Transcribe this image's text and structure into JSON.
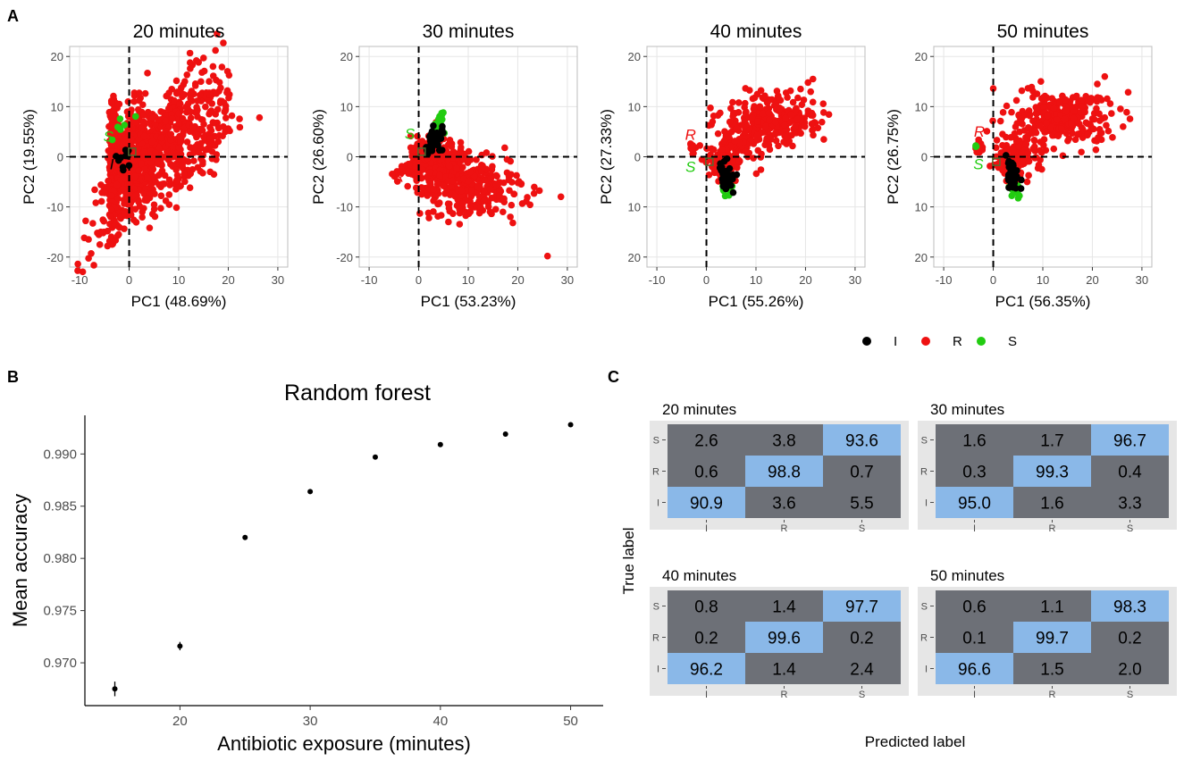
{
  "panel_letters": {
    "a": "A",
    "b": "B",
    "c": "C"
  },
  "colors": {
    "I": "#000000",
    "R": "#ee1111",
    "S": "#22cc11",
    "grid": "#e6e6e6",
    "border": "#bdbdbd",
    "cm_high": "#8ab8e8",
    "cm_low": "#6d7077",
    "cm_bg": "#e6e6e6"
  },
  "legend": {
    "items": [
      {
        "label": "I",
        "color": "#000000"
      },
      {
        "label": "R",
        "color": "#ee1111"
      },
      {
        "label": "S",
        "color": "#22cc11"
      }
    ]
  },
  "chart_data": [
    {
      "type": "scatter",
      "panel": "A",
      "title": "20 minutes",
      "xlabel": "PC1 (48.69%)",
      "ylabel": "PC2 (19.55%)",
      "xlim": [
        -12,
        32
      ],
      "ylim": [
        -22,
        22
      ],
      "xticks": [
        -10,
        0,
        10,
        20,
        30
      ],
      "yticks": [
        -20,
        -10,
        0,
        10,
        20
      ],
      "ref_lines": {
        "x": 0,
        "y": 0
      },
      "text_labels": [
        {
          "text": "S",
          "x": -4.2,
          "y": 3.0,
          "color": "#22cc11"
        },
        {
          "text": "I",
          "x": -3.5,
          "y": -2.5,
          "color": "#000000"
        }
      ],
      "series": [
        {
          "name": "R",
          "segments": [
            [
              -3,
              0,
              0.5,
              5.5,
              1.2,
              300
            ],
            [
              0,
              0,
              2,
              4.5,
              1.4,
              260
            ],
            [
              3,
              0.5,
              5,
              4,
              1.4,
              300
            ],
            [
              8,
              1,
              6,
              3.5,
              1.3,
              250
            ],
            [
              14,
              1.5,
              4,
              3,
              1.2,
              120
            ]
          ],
          "points": [
            [
              26.3,
              7.8
            ],
            [
              20,
              5.6
            ],
            [
              19,
              6
            ],
            [
              -2,
              10.5
            ],
            [
              1,
              11
            ],
            [
              2,
              11.2
            ]
          ]
        },
        {
          "name": "S",
          "segments": [
            [
              -2,
              7,
              1.8,
              1.5,
              0.4,
              6
            ]
          ],
          "points": []
        },
        {
          "name": "I",
          "segments": [
            [
              -1.2,
              0.3,
              0.7,
              1.2,
              0,
              10
            ]
          ],
          "points": []
        }
      ]
    },
    {
      "type": "scatter",
      "panel": "A",
      "title": "30 minutes",
      "xlabel": "PC1 (53.23%)",
      "ylabel": "PC2 (26.60%)",
      "xlim": [
        -12,
        32
      ],
      "ylim": [
        -22,
        22
      ],
      "xticks": [
        -10,
        0,
        10,
        20,
        30
      ],
      "yticks": [
        -20,
        -10,
        0,
        10,
        20
      ],
      "ref_lines": {
        "x": 0,
        "y": 0
      },
      "text_labels": [
        {
          "text": "S",
          "x": -1.8,
          "y": 3.6,
          "color": "#22cc11"
        },
        {
          "text": "R",
          "x": -4.0,
          "y": -5.0,
          "color": "#ee1111"
        }
      ],
      "series": [
        {
          "name": "R",
          "segments": [
            [
              -3,
              -2.8,
              1.5,
              0.5,
              0,
              20
            ],
            [
              0.5,
              1,
              1.5,
              1.5,
              0.3,
              80
            ],
            [
              4,
              -1.5,
              3,
              2.5,
              0,
              220
            ],
            [
              11,
              -6.5,
              5,
              2.5,
              0,
              260
            ]
          ],
          "points": [
            [
              26,
              -19.8
            ],
            [
              19,
              -13.2
            ],
            [
              18.5,
              -12
            ],
            [
              17,
              -11
            ]
          ]
        },
        {
          "name": "S",
          "segments": [
            [
              4,
              6.5,
              0.8,
              1,
              0.2,
              25
            ]
          ],
          "points": []
        },
        {
          "name": "I",
          "segments": [
            [
              3,
              3,
              1,
              1.5,
              0.5,
              40
            ]
          ],
          "points": []
        }
      ]
    },
    {
      "type": "scatter",
      "panel": "A",
      "title": "40 minutes",
      "xlabel": "PC1 (55.26%)",
      "ylabel": "PC2 (27.33%)",
      "xlim": [
        -12,
        32
      ],
      "ylim": [
        22,
        -22
      ],
      "xticks": [
        -10,
        0,
        10,
        20,
        30
      ],
      "yticks": [
        20,
        10,
        0,
        10,
        20
      ],
      "ref_lines": {
        "x": 0,
        "y": 0
      },
      "text_labels": [
        {
          "text": "S",
          "x": -3.2,
          "y": 3.0,
          "color": "#22cc11"
        },
        {
          "text": "R",
          "x": -3.2,
          "y": -3.4,
          "color": "#ee1111"
        }
      ],
      "series": [
        {
          "name": "R",
          "segments": [
            [
              -3,
              -1.8,
              0.4,
              0.5,
              0,
              15
            ],
            [
              3,
              2,
              1.5,
              1.5,
              0.3,
              60
            ],
            [
              6,
              -1.5,
              2.5,
              2,
              0,
              90
            ],
            [
              13,
              -7,
              5,
              2.5,
              0,
              280
            ]
          ],
          "points": [
            [
              21.5,
              -15.5
            ],
            [
              20.5,
              -14.8
            ],
            [
              19,
              -13.5
            ]
          ]
        },
        {
          "name": "S",
          "segments": [
            [
              4.2,
              6.5,
              0.6,
              0.6,
              0.2,
              20
            ]
          ],
          "points": []
        },
        {
          "name": "I",
          "segments": [
            [
              4,
              4,
              0.7,
              1.5,
              0.5,
              40
            ]
          ],
          "points": []
        }
      ]
    },
    {
      "type": "scatter",
      "panel": "A",
      "title": "50 minutes",
      "xlabel": "PC1 (56.35%)",
      "ylabel": "PC2 (26.75%)",
      "xlim": [
        -12,
        32
      ],
      "ylim": [
        22,
        -22
      ],
      "xticks": [
        -10,
        0,
        10,
        20,
        30
      ],
      "yticks": [
        20,
        10,
        0,
        10,
        20
      ],
      "ref_lines": {
        "x": 0,
        "y": 0
      },
      "text_labels": [
        {
          "text": "S",
          "x": -3.0,
          "y": 2.5,
          "color": "#22cc11"
        },
        {
          "text": "R",
          "x": -2.8,
          "y": -4.0,
          "color": "#ee1111"
        }
      ],
      "series": [
        {
          "name": "R",
          "segments": [
            [
              -3,
              -2,
              0.5,
              0.6,
              0,
              15
            ],
            [
              3,
              2,
              1.5,
              1.5,
              0.3,
              60
            ],
            [
              6,
              -1,
              2.5,
              2,
              0,
              90
            ],
            [
              14,
              -8,
              5,
              2.5,
              0,
              280
            ]
          ],
          "points": [
            [
              22.5,
              -16
            ],
            [
              21,
              -14.5
            ]
          ]
        },
        {
          "name": "S",
          "segments": [
            [
              4.5,
              6.5,
              0.6,
              0.7,
              0.2,
              20
            ],
            [
              -3.5,
              -2,
              0.2,
              0.2,
              0,
              3
            ]
          ],
          "points": []
        },
        {
          "name": "I",
          "segments": [
            [
              4,
              4,
              0.7,
              1.5,
              0.5,
              40
            ]
          ],
          "points": []
        }
      ]
    },
    {
      "type": "scatter",
      "panel": "B",
      "title": "Random forest",
      "xlabel": "Antibiotic exposure (minutes)",
      "ylabel": "Mean accuracy",
      "xlim": [
        12.7,
        52.5
      ],
      "ylim": [
        0.9659,
        0.9937
      ],
      "xticks": [
        20,
        30,
        40,
        50
      ],
      "yticks": [
        0.97,
        0.975,
        0.98,
        0.985,
        0.99
      ],
      "xtick_labels": [
        "20",
        "30",
        "40",
        "50"
      ],
      "ytick_labels": [
        "0.970",
        "0.975",
        "0.980",
        "0.985",
        "0.990"
      ],
      "x": [
        15,
        20,
        25,
        30,
        35,
        40,
        45,
        50
      ],
      "y": [
        0.9675,
        0.9716,
        0.982,
        0.9864,
        0.9897,
        0.9909,
        0.9919,
        0.9928
      ],
      "err": [
        0.0007,
        0.0004,
        0.0002,
        0.0002,
        0.0001,
        0.0001,
        0.0001,
        0.0001
      ]
    },
    {
      "type": "heatmap",
      "panel": "C",
      "xlabel": "Predicted label",
      "ylabel": "True label",
      "categories": [
        "I",
        "R",
        "S"
      ],
      "panels": [
        {
          "title": "20 minutes",
          "rows": [
            {
              "true": "S",
              "values": [
                "2.6",
                "3.8",
                "93.6"
              ]
            },
            {
              "true": "R",
              "values": [
                "0.6",
                "98.8",
                "0.7"
              ]
            },
            {
              "true": "I",
              "values": [
                "90.9",
                "3.6",
                "5.5"
              ]
            }
          ]
        },
        {
          "title": "30 minutes",
          "rows": [
            {
              "true": "S",
              "values": [
                "1.6",
                "1.7",
                "96.7"
              ]
            },
            {
              "true": "R",
              "values": [
                "0.3",
                "99.3",
                "0.4"
              ]
            },
            {
              "true": "I",
              "values": [
                "95.0",
                "1.6",
                "3.3"
              ]
            }
          ]
        },
        {
          "title": "40 minutes",
          "rows": [
            {
              "true": "S",
              "values": [
                "0.8",
                "1.4",
                "97.7"
              ]
            },
            {
              "true": "R",
              "values": [
                "0.2",
                "99.6",
                "0.2"
              ]
            },
            {
              "true": "I",
              "values": [
                "96.2",
                "1.4",
                "2.4"
              ]
            }
          ]
        },
        {
          "title": "50 minutes",
          "rows": [
            {
              "true": "S",
              "values": [
                "0.6",
                "1.1",
                "98.3"
              ]
            },
            {
              "true": "R",
              "values": [
                "0.1",
                "99.7",
                "0.2"
              ]
            },
            {
              "true": "I",
              "values": [
                "96.6",
                "1.5",
                "2.0"
              ]
            }
          ]
        }
      ]
    }
  ]
}
